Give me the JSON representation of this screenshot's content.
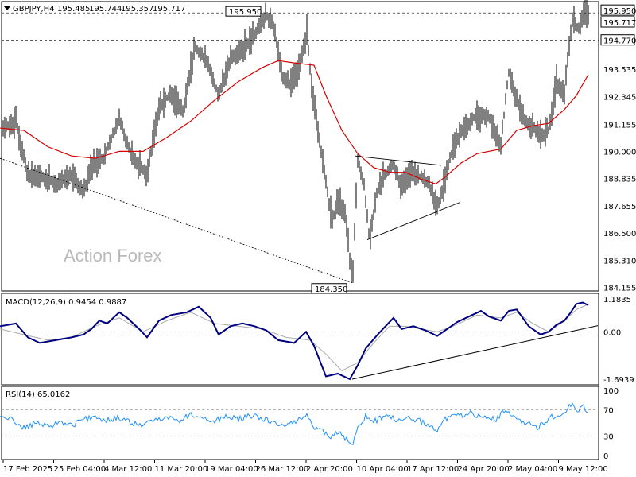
{
  "chart_data": {
    "type": "candlestick",
    "symbol": "GBPJPY,H4",
    "ohlc": {
      "open": "195.485",
      "high": "195.744",
      "low": "195.357",
      "close": "195.717"
    },
    "watermark": "Action Forex",
    "price_axis": {
      "ylim": [
        184.0,
        196.4
      ],
      "ticks": [
        "195.950",
        "195.717",
        "194.770",
        "193.535",
        "192.345",
        "191.155",
        "190.000",
        "188.835",
        "187.655",
        "186.500",
        "185.310",
        "184.155"
      ],
      "tick_values": [
        195.95,
        195.717,
        194.77,
        193.535,
        192.345,
        191.155,
        190.0,
        188.835,
        187.655,
        186.5,
        185.31,
        184.155
      ],
      "highlight_labels": [
        "195.950",
        "195.717",
        "194.770"
      ],
      "callouts": [
        {
          "label": "195.950",
          "value": 195.95,
          "at_bar": 330
        },
        {
          "label": "184.350",
          "value": 184.35,
          "at_bar": 443
        }
      ],
      "horizontal_levels": [
        195.95,
        195.717,
        194.77
      ]
    },
    "time_labels": [
      "17 Feb 2025",
      "25 Feb 04:00",
      "4 Mar 12:00",
      "11 Mar 20:00",
      "19 Mar 04:00",
      "26 Mar 12:00",
      "2 Apr 20:00",
      "10 Apr 04:00",
      "17 Apr 12:00",
      "24 Apr 20:00",
      "2 May 04:00",
      "9 May 12:00"
    ],
    "price_path": [
      [
        0,
        190.9
      ],
      [
        20,
        191.3
      ],
      [
        35,
        189.0
      ],
      [
        50,
        188.9
      ],
      [
        70,
        188.6
      ],
      [
        90,
        189.0
      ],
      [
        105,
        188.2
      ],
      [
        115,
        189.4
      ],
      [
        130,
        189.7
      ],
      [
        150,
        191.4
      ],
      [
        165,
        189.8
      ],
      [
        185,
        189.0
      ],
      [
        200,
        191.9
      ],
      [
        215,
        192.5
      ],
      [
        230,
        191.7
      ],
      [
        245,
        194.5
      ],
      [
        260,
        193.9
      ],
      [
        275,
        192.4
      ],
      [
        290,
        194.0
      ],
      [
        305,
        194.4
      ],
      [
        320,
        195.0
      ],
      [
        335,
        195.9
      ],
      [
        345,
        195.3
      ],
      [
        355,
        193.2
      ],
      [
        365,
        192.9
      ],
      [
        375,
        193.5
      ],
      [
        386,
        195.0
      ],
      [
        392,
        192.9
      ],
      [
        400,
        190.9
      ],
      [
        410,
        188.6
      ],
      [
        418,
        187.0
      ],
      [
        425,
        188.0
      ],
      [
        435,
        187.2
      ],
      [
        443,
        184.35
      ],
      [
        450,
        189.6
      ],
      [
        458,
        188.6
      ],
      [
        465,
        186.2
      ],
      [
        475,
        188.4
      ],
      [
        485,
        189.0
      ],
      [
        495,
        189.4
      ],
      [
        505,
        188.5
      ],
      [
        515,
        189.1
      ],
      [
        528,
        188.9
      ],
      [
        540,
        188.6
      ],
      [
        550,
        187.6
      ],
      [
        560,
        188.8
      ],
      [
        570,
        190.2
      ],
      [
        580,
        190.8
      ],
      [
        590,
        191.2
      ],
      [
        600,
        191.6
      ],
      [
        615,
        191.5
      ],
      [
        630,
        190.3
      ],
      [
        640,
        193.4
      ],
      [
        650,
        192.2
      ],
      [
        660,
        191.3
      ],
      [
        670,
        191.0
      ],
      [
        680,
        190.7
      ],
      [
        690,
        190.9
      ],
      [
        700,
        193.0
      ],
      [
        710,
        192.4
      ],
      [
        715,
        194.3
      ],
      [
        720,
        195.7
      ],
      [
        727,
        195.2
      ],
      [
        735,
        196.2
      ],
      [
        740,
        195.717
      ]
    ],
    "moving_average": [
      [
        0,
        191.0
      ],
      [
        30,
        190.9
      ],
      [
        60,
        190.2
      ],
      [
        90,
        189.8
      ],
      [
        120,
        189.7
      ],
      [
        150,
        190.0
      ],
      [
        180,
        190.0
      ],
      [
        210,
        190.6
      ],
      [
        240,
        191.3
      ],
      [
        270,
        192.2
      ],
      [
        300,
        193.0
      ],
      [
        330,
        193.6
      ],
      [
        350,
        193.9
      ],
      [
        370,
        193.8
      ],
      [
        395,
        193.7
      ],
      [
        410,
        192.4
      ],
      [
        430,
        190.9
      ],
      [
        450,
        189.9
      ],
      [
        470,
        189.3
      ],
      [
        490,
        189.1
      ],
      [
        510,
        189.1
      ],
      [
        530,
        188.8
      ],
      [
        548,
        188.6
      ],
      [
        560,
        188.9
      ],
      [
        580,
        189.5
      ],
      [
        600,
        189.9
      ],
      [
        630,
        190.1
      ],
      [
        650,
        190.9
      ],
      [
        670,
        191.1
      ],
      [
        690,
        191.2
      ],
      [
        710,
        191.8
      ],
      [
        725,
        192.4
      ],
      [
        740,
        193.3
      ]
    ],
    "trendlines": [
      {
        "from": [
          0,
          189.7
        ],
        "to": [
          443,
          184.35
        ],
        "style": "dotted"
      },
      {
        "from": [
          447,
          189.8
        ],
        "to": [
          555,
          189.4
        ],
        "style": "solid"
      },
      {
        "from": [
          462,
          186.2
        ],
        "to": [
          578,
          187.8
        ],
        "style": "solid"
      }
    ],
    "macd": {
      "label": "MACD(12,26,9) 0.9454 0.9887",
      "ylim": [
        -1.9,
        1.35
      ],
      "ticks": [
        "1.1835",
        "0.00",
        "-1.6939"
      ],
      "tick_values": [
        1.1835,
        0.0,
        -1.6939
      ],
      "main": [
        [
          0,
          0.2
        ],
        [
          20,
          0.3
        ],
        [
          35,
          -0.2
        ],
        [
          50,
          -0.4
        ],
        [
          70,
          -0.3
        ],
        [
          90,
          -0.2
        ],
        [
          105,
          -0.1
        ],
        [
          115,
          0.1
        ],
        [
          125,
          0.4
        ],
        [
          135,
          0.3
        ],
        [
          150,
          0.7
        ],
        [
          160,
          0.5
        ],
        [
          175,
          0.1
        ],
        [
          185,
          -0.2
        ],
        [
          200,
          0.4
        ],
        [
          215,
          0.6
        ],
        [
          235,
          0.7
        ],
        [
          250,
          0.9
        ],
        [
          265,
          0.5
        ],
        [
          275,
          -0.1
        ],
        [
          290,
          0.2
        ],
        [
          305,
          0.3
        ],
        [
          320,
          0.2
        ],
        [
          335,
          0.05
        ],
        [
          350,
          -0.3
        ],
        [
          370,
          -0.4
        ],
        [
          385,
          0.0
        ],
        [
          395,
          -0.5
        ],
        [
          410,
          -1.6
        ],
        [
          425,
          -1.5
        ],
        [
          440,
          -1.7
        ],
        [
          450,
          -1.2
        ],
        [
          460,
          -0.6
        ],
        [
          475,
          -0.1
        ],
        [
          485,
          0.2
        ],
        [
          495,
          0.5
        ],
        [
          505,
          0.1
        ],
        [
          520,
          0.2
        ],
        [
          535,
          0.05
        ],
        [
          550,
          -0.15
        ],
        [
          560,
          0.05
        ],
        [
          575,
          0.35
        ],
        [
          590,
          0.55
        ],
        [
          605,
          0.75
        ],
        [
          615,
          0.55
        ],
        [
          630,
          0.4
        ],
        [
          640,
          0.75
        ],
        [
          650,
          0.8
        ],
        [
          665,
          0.2
        ],
        [
          680,
          -0.1
        ],
        [
          690,
          0.0
        ],
        [
          700,
          0.25
        ],
        [
          710,
          0.4
        ],
        [
          718,
          0.7
        ],
        [
          725,
          1.0
        ],
        [
          733,
          1.05
        ],
        [
          740,
          0.95
        ]
      ],
      "signal": [
        [
          0,
          0.1
        ],
        [
          30,
          -0.1
        ],
        [
          60,
          -0.3
        ],
        [
          90,
          -0.2
        ],
        [
          120,
          0.2
        ],
        [
          150,
          0.5
        ],
        [
          180,
          0.0
        ],
        [
          210,
          0.4
        ],
        [
          240,
          0.7
        ],
        [
          270,
          0.3
        ],
        [
          300,
          0.2
        ],
        [
          330,
          0.1
        ],
        [
          360,
          -0.2
        ],
        [
          390,
          -0.3
        ],
        [
          410,
          -0.8
        ],
        [
          430,
          -1.4
        ],
        [
          450,
          -1.1
        ],
        [
          470,
          -0.4
        ],
        [
          490,
          0.2
        ],
        [
          510,
          0.2
        ],
        [
          530,
          0.1
        ],
        [
          550,
          0.0
        ],
        [
          570,
          0.2
        ],
        [
          600,
          0.6
        ],
        [
          630,
          0.5
        ],
        [
          650,
          0.7
        ],
        [
          670,
          0.3
        ],
        [
          690,
          0.0
        ],
        [
          710,
          0.4
        ],
        [
          725,
          0.8
        ],
        [
          740,
          0.99
        ]
      ],
      "trendline": {
        "from": [
          443,
          -1.7
        ],
        "to": [
          752,
          0.22
        ]
      }
    },
    "rsi": {
      "label": "RSI(14) 65.0162",
      "ylim": [
        0,
        100
      ],
      "ticks": [
        "100",
        "70",
        "30",
        "0"
      ],
      "tick_values": [
        100,
        70,
        30,
        0
      ],
      "series": [
        [
          0,
          60
        ],
        [
          15,
          56
        ],
        [
          30,
          42
        ],
        [
          45,
          50
        ],
        [
          60,
          44
        ],
        [
          75,
          52
        ],
        [
          90,
          46
        ],
        [
          105,
          55
        ],
        [
          120,
          60
        ],
        [
          135,
          54
        ],
        [
          150,
          58
        ],
        [
          165,
          50
        ],
        [
          180,
          46
        ],
        [
          195,
          55
        ],
        [
          210,
          60
        ],
        [
          225,
          52
        ],
        [
          240,
          64
        ],
        [
          255,
          58
        ],
        [
          270,
          53
        ],
        [
          285,
          60
        ],
        [
          300,
          56
        ],
        [
          315,
          61
        ],
        [
          330,
          57
        ],
        [
          345,
          50
        ],
        [
          360,
          45
        ],
        [
          375,
          55
        ],
        [
          386,
          64
        ],
        [
          395,
          42
        ],
        [
          405,
          38
        ],
        [
          415,
          28
        ],
        [
          425,
          35
        ],
        [
          435,
          26
        ],
        [
          443,
          15
        ],
        [
          450,
          46
        ],
        [
          460,
          60
        ],
        [
          470,
          52
        ],
        [
          480,
          58
        ],
        [
          490,
          62
        ],
        [
          500,
          52
        ],
        [
          510,
          57
        ],
        [
          520,
          55
        ],
        [
          530,
          52
        ],
        [
          540,
          47
        ],
        [
          550,
          38
        ],
        [
          560,
          55
        ],
        [
          570,
          62
        ],
        [
          580,
          60
        ],
        [
          590,
          66
        ],
        [
          600,
          62
        ],
        [
          615,
          60
        ],
        [
          625,
          55
        ],
        [
          635,
          70
        ],
        [
          645,
          60
        ],
        [
          655,
          52
        ],
        [
          665,
          48
        ],
        [
          675,
          43
        ],
        [
          685,
          50
        ],
        [
          695,
          60
        ],
        [
          705,
          56
        ],
        [
          712,
          70
        ],
        [
          720,
          78
        ],
        [
          727,
          70
        ],
        [
          733,
          76
        ],
        [
          740,
          65
        ]
      ]
    }
  }
}
